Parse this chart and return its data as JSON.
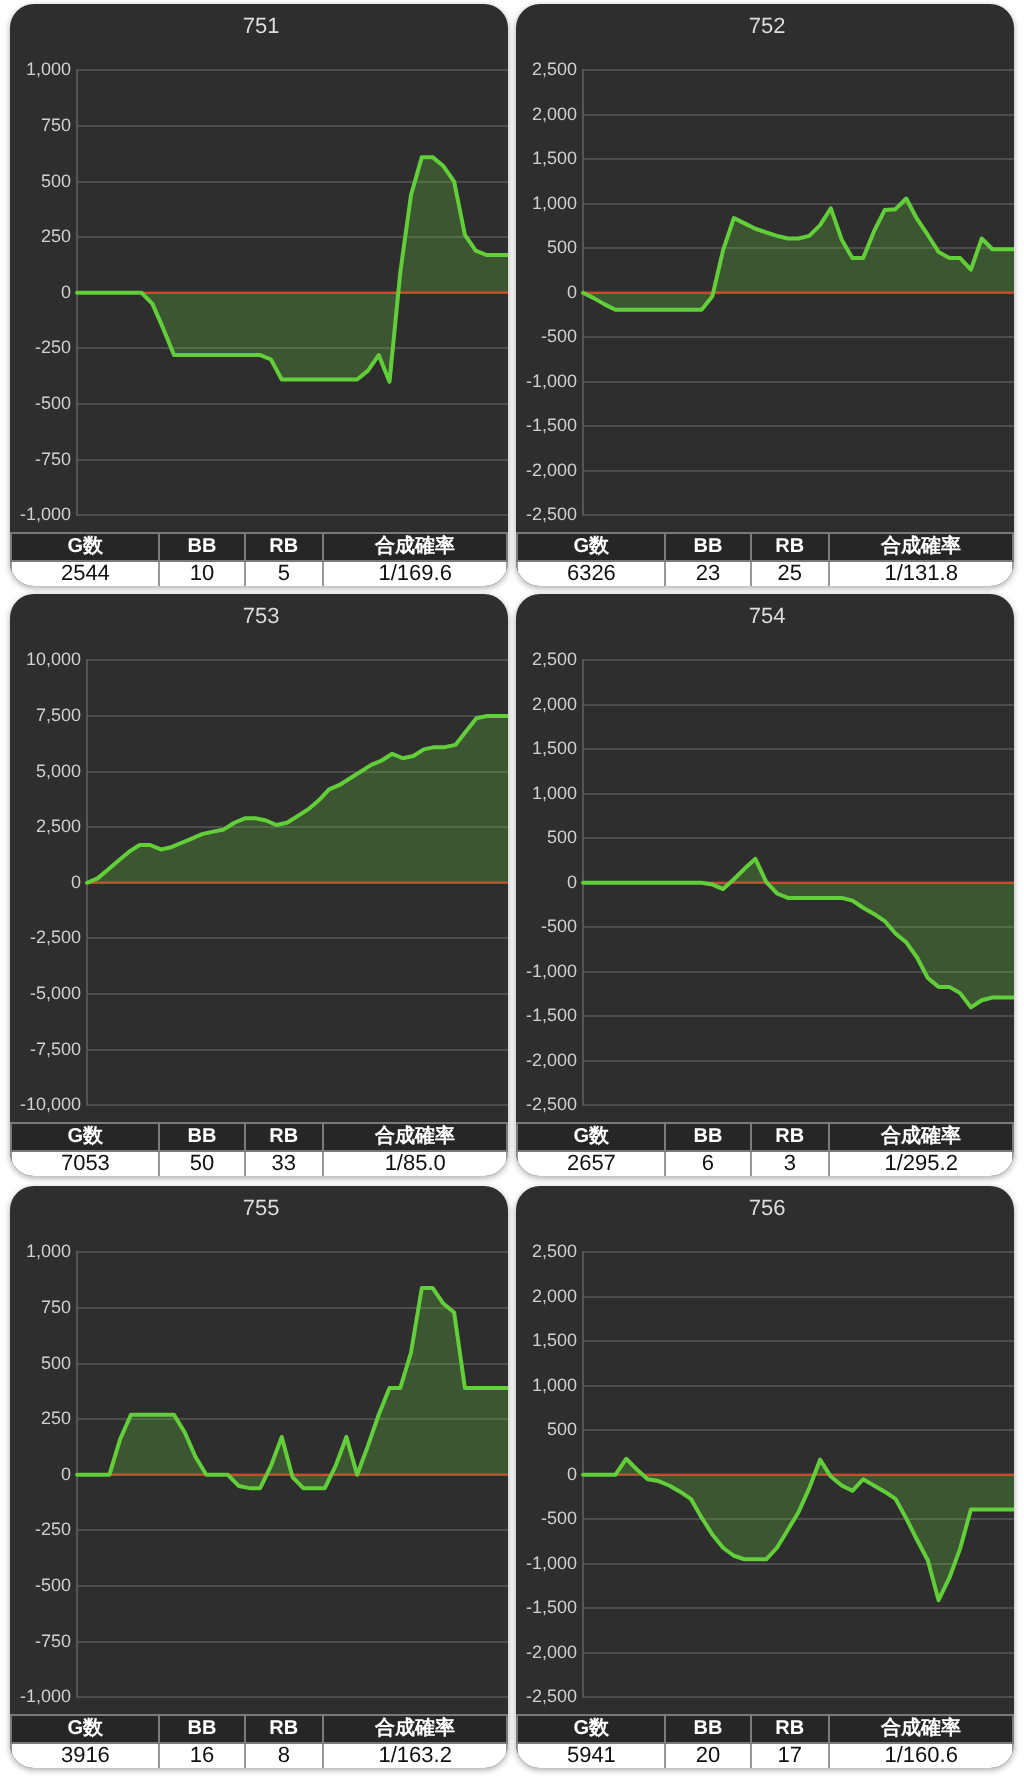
{
  "chart_data": [
    {
      "type": "area",
      "title": "751",
      "categories": [
        null,
        null,
        null,
        null,
        null,
        null,
        null,
        null,
        null,
        null,
        null,
        null,
        null,
        null,
        null,
        null,
        null,
        null,
        null,
        null,
        null,
        null,
        null,
        null,
        null,
        null,
        null,
        null,
        null,
        null,
        null,
        null,
        null,
        null,
        null,
        null,
        null,
        null,
        null,
        null,
        null
      ],
      "values": [
        0,
        0,
        0,
        0,
        0,
        0,
        0,
        -50,
        -160,
        -280,
        -280,
        -280,
        -280,
        -280,
        -280,
        -280,
        -280,
        -280,
        -300,
        -390,
        -390,
        -390,
        -390,
        -390,
        -390,
        -390,
        -390,
        -350,
        -280,
        -400,
        90,
        440,
        610,
        610,
        570,
        500,
        260,
        190,
        170,
        170,
        170
      ],
      "color": "#62cf3a",
      "ylim": [
        -1000,
        1000
      ],
      "yticks": [
        {
          "value": 1000,
          "label": "1,000"
        },
        750,
        500,
        250,
        0,
        -250,
        -500,
        -750,
        {
          "value": -1000,
          "label": "-1,000"
        }
      ],
      "grid": "y",
      "tick_labels": "y",
      "ref_lines": [
        {
          "axis": "y",
          "value": 0,
          "color": "#d03a2a"
        }
      ],
      "annotations": [
        "G数",
        "BB",
        "RB",
        "合成確率",
        "2544",
        "10",
        "5",
        "1/169.6"
      ]
    },
    {
      "type": "area",
      "title": "752",
      "categories": [
        null,
        null,
        null,
        null,
        null,
        null,
        null,
        null,
        null,
        null,
        null,
        null,
        null,
        null,
        null,
        null,
        null,
        null,
        null,
        null,
        null,
        null,
        null,
        null,
        null,
        null,
        null,
        null,
        null,
        null,
        null,
        null,
        null,
        null,
        null,
        null,
        null,
        null,
        null,
        null,
        null
      ],
      "values": [
        0,
        -60,
        -130,
        -190,
        -190,
        -190,
        -190,
        -190,
        -190,
        -190,
        -190,
        -190,
        -40,
        480,
        840,
        780,
        720,
        680,
        640,
        610,
        610,
        640,
        760,
        950,
        600,
        390,
        390,
        690,
        930,
        940,
        1060,
        830,
        650,
        460,
        390,
        390,
        260,
        610,
        490,
        490,
        490
      ],
      "color": "#62cf3a",
      "ylim": [
        -2500,
        2500
      ],
      "yticks": [
        {
          "value": 2500,
          "label": "2,500"
        },
        {
          "value": 2000,
          "label": "2,000"
        },
        {
          "value": 1500,
          "label": "1,500"
        },
        {
          "value": 1000,
          "label": "1,000"
        },
        500,
        0,
        -500,
        {
          "value": -1000,
          "label": "-1,000"
        },
        {
          "value": -1500,
          "label": "-1,500"
        },
        {
          "value": -2000,
          "label": "-2,000"
        },
        {
          "value": -2500,
          "label": "-2,500"
        }
      ],
      "grid": "y",
      "tick_labels": "y",
      "ref_lines": [
        {
          "axis": "y",
          "value": 0,
          "color": "#d03a2a"
        }
      ],
      "annotations": [
        "G数",
        "BB",
        "RB",
        "合成確率",
        "6326",
        "23",
        "25",
        "1/131.8"
      ]
    },
    {
      "type": "area",
      "title": "753",
      "categories": [
        null,
        null,
        null,
        null,
        null,
        null,
        null,
        null,
        null,
        null,
        null,
        null,
        null,
        null,
        null,
        null,
        null,
        null,
        null,
        null,
        null,
        null,
        null,
        null,
        null,
        null,
        null,
        null,
        null,
        null,
        null,
        null,
        null,
        null,
        null,
        null,
        null,
        null,
        null,
        null,
        null
      ],
      "values": [
        0,
        200,
        600,
        1000,
        1400,
        1700,
        1700,
        1500,
        1600,
        1800,
        2000,
        2200,
        2300,
        2400,
        2700,
        2900,
        2900,
        2800,
        2600,
        2700,
        3000,
        3300,
        3700,
        4200,
        4400,
        4700,
        5000,
        5300,
        5500,
        5800,
        5600,
        5700,
        6000,
        6100,
        6100,
        6200,
        6800,
        7400,
        7500,
        7500,
        7500
      ],
      "color": "#62cf3a",
      "ylim": [
        -10000,
        10000
      ],
      "yticks": [
        {
          "value": 10000,
          "label": "10,000"
        },
        {
          "value": 7500,
          "label": "7,500"
        },
        {
          "value": 5000,
          "label": "5,000"
        },
        {
          "value": 2500,
          "label": "2,500"
        },
        0,
        {
          "value": -2500,
          "label": "-2,500"
        },
        {
          "value": -5000,
          "label": "-5,000"
        },
        {
          "value": -7500,
          "label": "-7,500"
        },
        {
          "value": -10000,
          "label": "-10,000"
        }
      ],
      "grid": "y",
      "tick_labels": "y",
      "ref_lines": [
        {
          "axis": "y",
          "value": 0,
          "color": "#d03a2a"
        }
      ],
      "annotations": [
        "G数",
        "BB",
        "RB",
        "合成確率",
        "7053",
        "50",
        "33",
        "1/85.0"
      ]
    },
    {
      "type": "area",
      "title": "754",
      "categories": [
        null,
        null,
        null,
        null,
        null,
        null,
        null,
        null,
        null,
        null,
        null,
        null,
        null,
        null,
        null,
        null,
        null,
        null,
        null,
        null,
        null,
        null,
        null,
        null,
        null,
        null,
        null,
        null,
        null,
        null,
        null,
        null,
        null,
        null,
        null,
        null,
        null,
        null,
        null,
        null,
        null
      ],
      "values": [
        0,
        0,
        0,
        0,
        0,
        0,
        0,
        0,
        0,
        0,
        0,
        0,
        -20,
        -70,
        40,
        160,
        270,
        10,
        -120,
        -170,
        -170,
        -170,
        -170,
        -170,
        -170,
        -200,
        -280,
        -350,
        -430,
        -570,
        -670,
        -840,
        -1070,
        -1170,
        -1170,
        -1240,
        -1400,
        -1320,
        -1290,
        -1290,
        -1290
      ],
      "color": "#62cf3a",
      "ylim": [
        -2500,
        2500
      ],
      "yticks": [
        {
          "value": 2500,
          "label": "2,500"
        },
        {
          "value": 2000,
          "label": "2,000"
        },
        {
          "value": 1500,
          "label": "1,500"
        },
        {
          "value": 1000,
          "label": "1,000"
        },
        500,
        0,
        -500,
        {
          "value": -1000,
          "label": "-1,000"
        },
        {
          "value": -1500,
          "label": "-1,500"
        },
        {
          "value": -2000,
          "label": "-2,000"
        },
        {
          "value": -2500,
          "label": "-2,500"
        }
      ],
      "grid": "y",
      "tick_labels": "y",
      "ref_lines": [
        {
          "axis": "y",
          "value": 0,
          "color": "#d03a2a"
        }
      ],
      "annotations": [
        "G数",
        "BB",
        "RB",
        "合成確率",
        "2657",
        "6",
        "3",
        "1/295.2"
      ]
    },
    {
      "type": "area",
      "title": "755",
      "categories": [
        null,
        null,
        null,
        null,
        null,
        null,
        null,
        null,
        null,
        null,
        null,
        null,
        null,
        null,
        null,
        null,
        null,
        null,
        null,
        null,
        null,
        null,
        null,
        null,
        null,
        null,
        null,
        null,
        null,
        null,
        null,
        null,
        null,
        null,
        null,
        null,
        null,
        null,
        null,
        null,
        null
      ],
      "values": [
        0,
        0,
        0,
        0,
        160,
        270,
        270,
        270,
        270,
        270,
        190,
        80,
        0,
        0,
        0,
        -50,
        -60,
        -60,
        40,
        170,
        -10,
        -60,
        -60,
        -60,
        40,
        170,
        0,
        130,
        270,
        390,
        390,
        550,
        840,
        840,
        770,
        730,
        390,
        390,
        390,
        390,
        390
      ],
      "color": "#62cf3a",
      "ylim": [
        -1000,
        1000
      ],
      "yticks": [
        {
          "value": 1000,
          "label": "1,000"
        },
        750,
        500,
        250,
        0,
        -250,
        -500,
        -750,
        {
          "value": -1000,
          "label": "-1,000"
        }
      ],
      "grid": "y",
      "tick_labels": "y",
      "ref_lines": [
        {
          "axis": "y",
          "value": 0,
          "color": "#d03a2a"
        }
      ],
      "annotations": [
        "G数",
        "BB",
        "RB",
        "合成確率",
        "3916",
        "16",
        "8",
        "1/163.2"
      ]
    },
    {
      "type": "area",
      "title": "756",
      "categories": [
        null,
        null,
        null,
        null,
        null,
        null,
        null,
        null,
        null,
        null,
        null,
        null,
        null,
        null,
        null,
        null,
        null,
        null,
        null,
        null,
        null,
        null,
        null,
        null,
        null,
        null,
        null,
        null,
        null,
        null,
        null,
        null,
        null,
        null,
        null,
        null,
        null,
        null,
        null,
        null,
        null
      ],
      "values": [
        0,
        0,
        0,
        0,
        180,
        60,
        -50,
        -70,
        -120,
        -190,
        -270,
        -480,
        -670,
        -820,
        -910,
        -950,
        -950,
        -950,
        -820,
        -620,
        -420,
        -150,
        170,
        -20,
        -120,
        -180,
        -50,
        -120,
        -190,
        -270,
        -490,
        -730,
        -960,
        -1410,
        -1160,
        -830,
        -390,
        -390,
        -390,
        -390,
        -390
      ],
      "color": "#62cf3a",
      "ylim": [
        -2500,
        2500
      ],
      "yticks": [
        {
          "value": 2500,
          "label": "2,500"
        },
        {
          "value": 2000,
          "label": "2,000"
        },
        {
          "value": 1500,
          "label": "1,500"
        },
        {
          "value": 1000,
          "label": "1,000"
        },
        500,
        0,
        -500,
        {
          "value": -1000,
          "label": "-1,000"
        },
        {
          "value": -1500,
          "label": "-1,500"
        },
        {
          "value": -2000,
          "label": "-2,000"
        },
        {
          "value": -2500,
          "label": "-2,500"
        }
      ],
      "grid": "y",
      "tick_labels": "y",
      "ref_lines": [
        {
          "axis": "y",
          "value": 0,
          "color": "#d03a2a"
        }
      ],
      "annotations": [
        "G数",
        "BB",
        "RB",
        "合成確率",
        "5941",
        "20",
        "17",
        "1/160.6"
      ]
    }
  ]
}
